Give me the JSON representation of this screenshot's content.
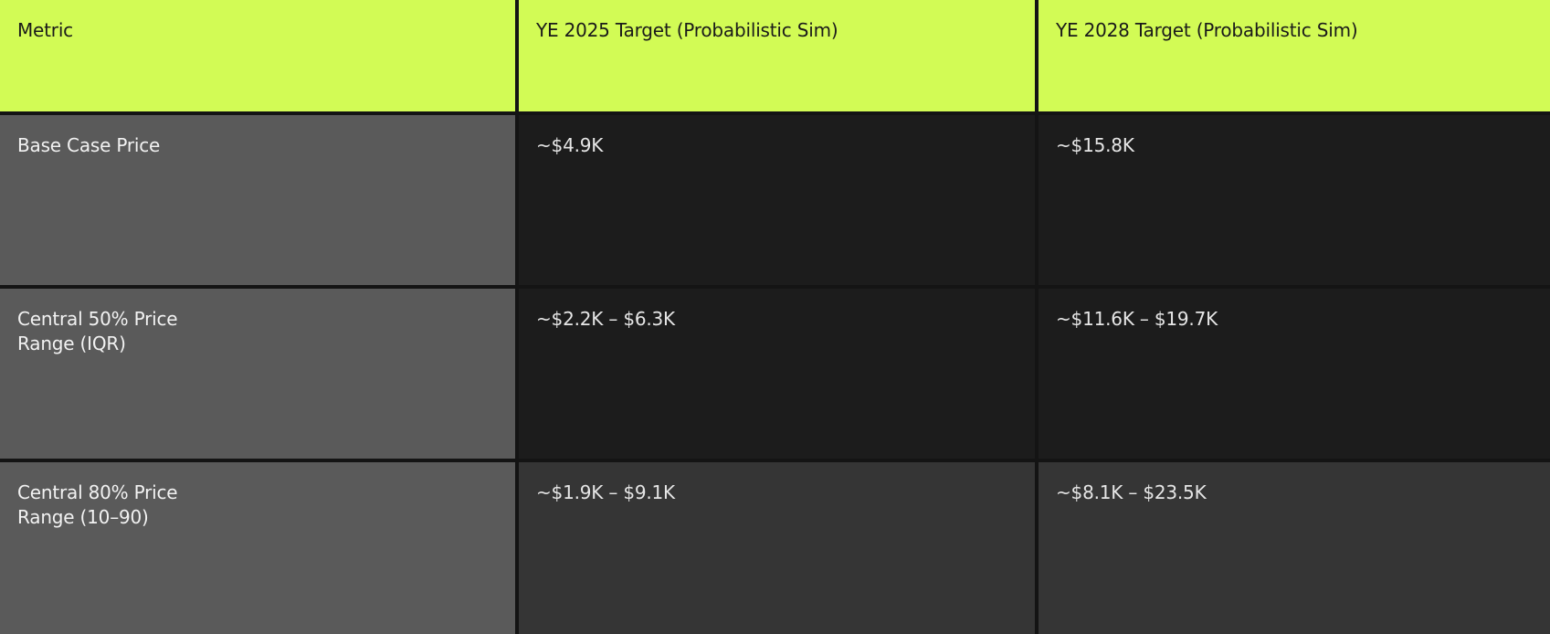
{
  "colors": {
    "header_bg": "#d2fb55",
    "metric_bg": "#5a5a5a",
    "cell_dark": "#1c1c1c",
    "cell_mid": "#353535"
  },
  "table": {
    "headers": [
      "Metric",
      "YE 2025 Target (Probabilistic Sim)",
      "YE 2028 Target (Probabilistic Sim)"
    ],
    "rows": [
      {
        "metric": "Base Case Price",
        "ye2025": "~$4.9K",
        "ye2028": "~$15.8K"
      },
      {
        "metric": "Central 50% Price Range (IQR)",
        "ye2025": "~$2.2K – $6.3K",
        "ye2028": "~$11.6K – $19.7K"
      },
      {
        "metric": "Central 80% Price Range (10–90)",
        "ye2025": "~$1.9K – $9.1K",
        "ye2028": "~$8.1K – $23.5K"
      }
    ]
  }
}
